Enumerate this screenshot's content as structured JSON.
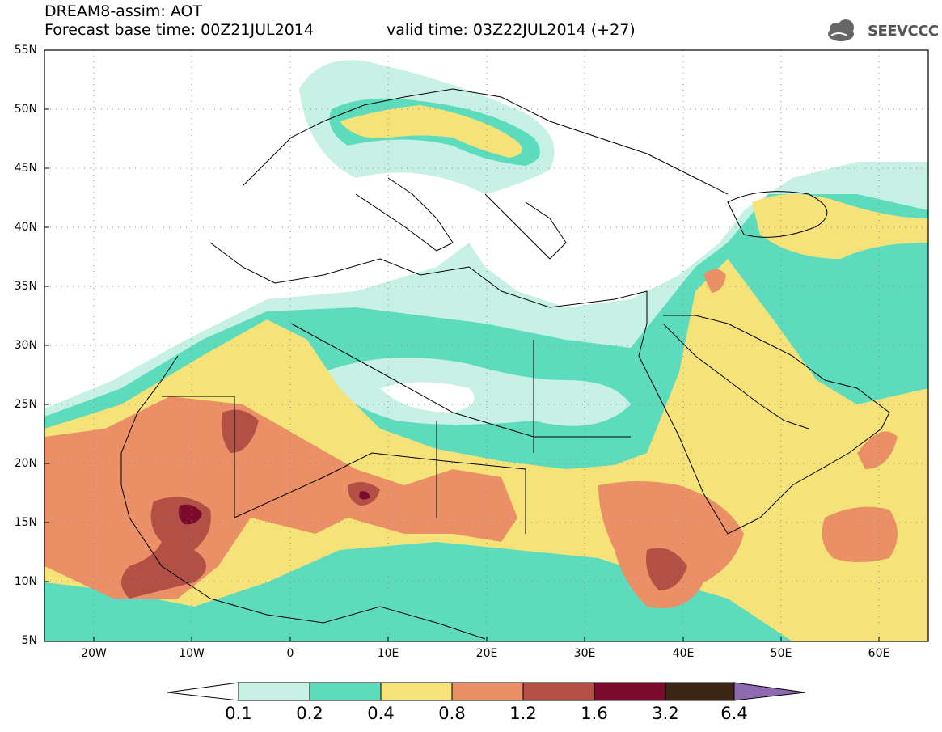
{
  "header": {
    "line1": "DREAM8-assim: AOT",
    "base_time": "Forecast base time: 00Z21JUL2014",
    "valid_time": "valid time: 03Z22JUL2014 (+27)",
    "logo_text": "SEEVCCC"
  },
  "map": {
    "projection": "lat-lon",
    "lon_range": [
      -25,
      65
    ],
    "lat_range": [
      5,
      55
    ],
    "lat_ticks": [
      "55N",
      "50N",
      "45N",
      "40N",
      "35N",
      "30N",
      "25N",
      "20N",
      "15N",
      "10N",
      "5N"
    ],
    "lon_ticks": [
      "20W",
      "10W",
      "0",
      "10E",
      "20E",
      "30E",
      "40E",
      "50E",
      "60E"
    ],
    "field": "Aerosol Optical Thickness",
    "gridlines": "dotted"
  },
  "colorbar": {
    "labels": [
      "0.1",
      "0.2",
      "0.4",
      "0.8",
      "1.2",
      "1.6",
      "3.2",
      "6.4"
    ],
    "colors": [
      "#ffffff",
      "#c8f1e6",
      "#5ddbbd",
      "#f5e37a",
      "#ea8f66",
      "#b35045",
      "#7c0a2c",
      "#3d2514",
      "#8e6bb0"
    ]
  }
}
